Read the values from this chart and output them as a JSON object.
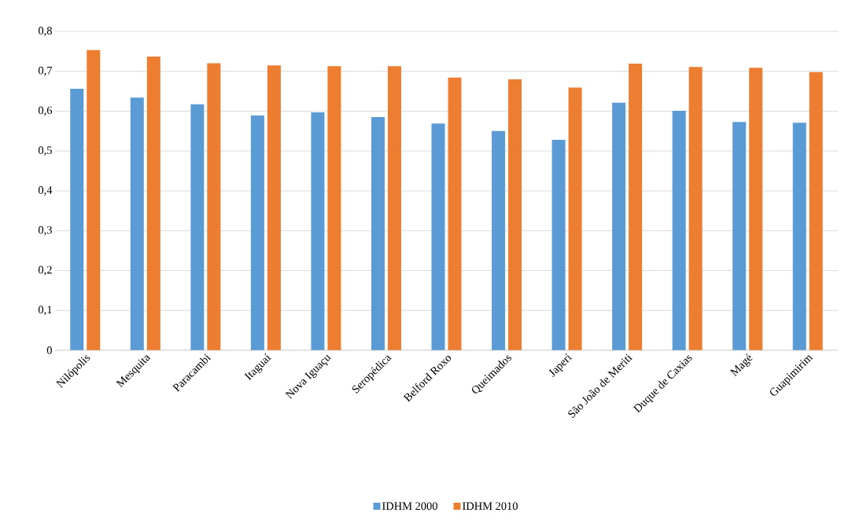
{
  "chart_data": {
    "type": "bar",
    "categories": [
      "Nilópolis",
      "Mesquita",
      "Paracambi",
      "Itaguaí",
      "Nova Iguaçu",
      "Seropédica",
      "Belford Roxo",
      "Queimados",
      "Japeri",
      "São João de Meriti",
      "Duque de Caxias",
      "Magé",
      "Guapimirim"
    ],
    "series": [
      {
        "name": "IDHM 2000",
        "color": "#5b9bd5",
        "values": [
          0.656,
          0.634,
          0.617,
          0.589,
          0.597,
          0.585,
          0.569,
          0.55,
          0.528,
          0.621,
          0.601,
          0.573,
          0.571
        ]
      },
      {
        "name": "IDHM 2010",
        "color": "#ed7d31",
        "values": [
          0.753,
          0.737,
          0.72,
          0.715,
          0.713,
          0.713,
          0.684,
          0.68,
          0.659,
          0.719,
          0.711,
          0.709,
          0.698
        ]
      }
    ],
    "ylim": [
      0,
      0.8
    ],
    "yticks": [
      {
        "value": 0,
        "label": "0"
      },
      {
        "value": 0.1,
        "label": "0,1"
      },
      {
        "value": 0.2,
        "label": "0,2"
      },
      {
        "value": 0.3,
        "label": "0,3"
      },
      {
        "value": 0.4,
        "label": "0,4"
      },
      {
        "value": 0.5,
        "label": "0,5"
      },
      {
        "value": 0.6,
        "label": "0,6"
      },
      {
        "value": 0.7,
        "label": "0,7"
      },
      {
        "value": 0.8,
        "label": "0,8"
      }
    ],
    "grid": "y",
    "legend": "bottom"
  }
}
